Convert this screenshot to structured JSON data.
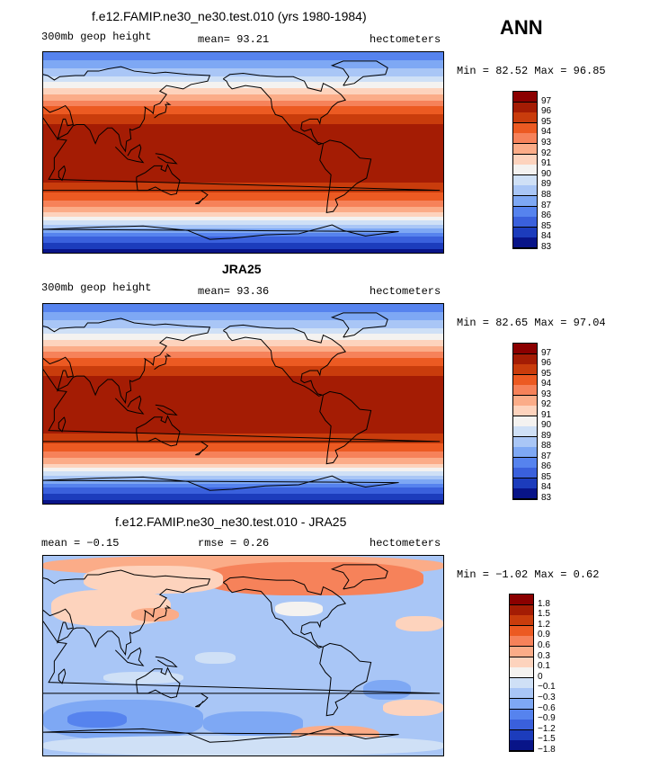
{
  "season": "ANN",
  "panels": [
    {
      "title": "f.e12.FAMIP.ne30_ne30.test.010 (yrs 1980-1984)",
      "left_label": "300mb geop height",
      "stat_label": "mean=  93.21",
      "units": "hectometers",
      "minmax": "Min =  82.52 Max =  96.85"
    },
    {
      "title": "JRA25",
      "left_label": "300mb geop height",
      "stat_label": "mean=  93.36",
      "units": "hectometers",
      "minmax": "Min =  82.65 Max =  97.04"
    },
    {
      "title": "f.e12.FAMIP.ne30_ne30.test.010 - JRA25",
      "left_label": "mean =  −0.15",
      "stat_label": "rmse =   0.26",
      "units": "hectometers",
      "minmax": "Min =  −1.02 Max =   0.62"
    }
  ],
  "colorbar_abs": {
    "labels": [
      "97",
      "96",
      "95",
      "94",
      "93",
      "92",
      "91",
      "90",
      "89",
      "88",
      "87",
      "86",
      "85",
      "84",
      "83"
    ],
    "colors": [
      "#8b0000",
      "#a41c04",
      "#c93c0c",
      "#ec5a22",
      "#f6825a",
      "#fbac88",
      "#fdd3bd",
      "#f4f2f0",
      "#cfe0f6",
      "#a9c6f6",
      "#7ea8f4",
      "#5683ee",
      "#3a60dc",
      "#1c3cbc",
      "#081488"
    ]
  },
  "colorbar_diff": {
    "labels": [
      "1.8",
      "1.5",
      "1.2",
      "0.9",
      "0.6",
      "0.3",
      "0.1",
      "0",
      "−0.1",
      "−0.3",
      "−0.6",
      "−0.9",
      "−1.2",
      "−1.5",
      "−1.8"
    ],
    "colors": [
      "#8b0000",
      "#a41c04",
      "#c93c0c",
      "#ec5a22",
      "#f6825a",
      "#fbac88",
      "#fdd3bd",
      "#f4f2f0",
      "#cfe0f6",
      "#a9c6f6",
      "#7ea8f4",
      "#5683ee",
      "#3a60dc",
      "#1c3cbc",
      "#081488"
    ]
  }
}
